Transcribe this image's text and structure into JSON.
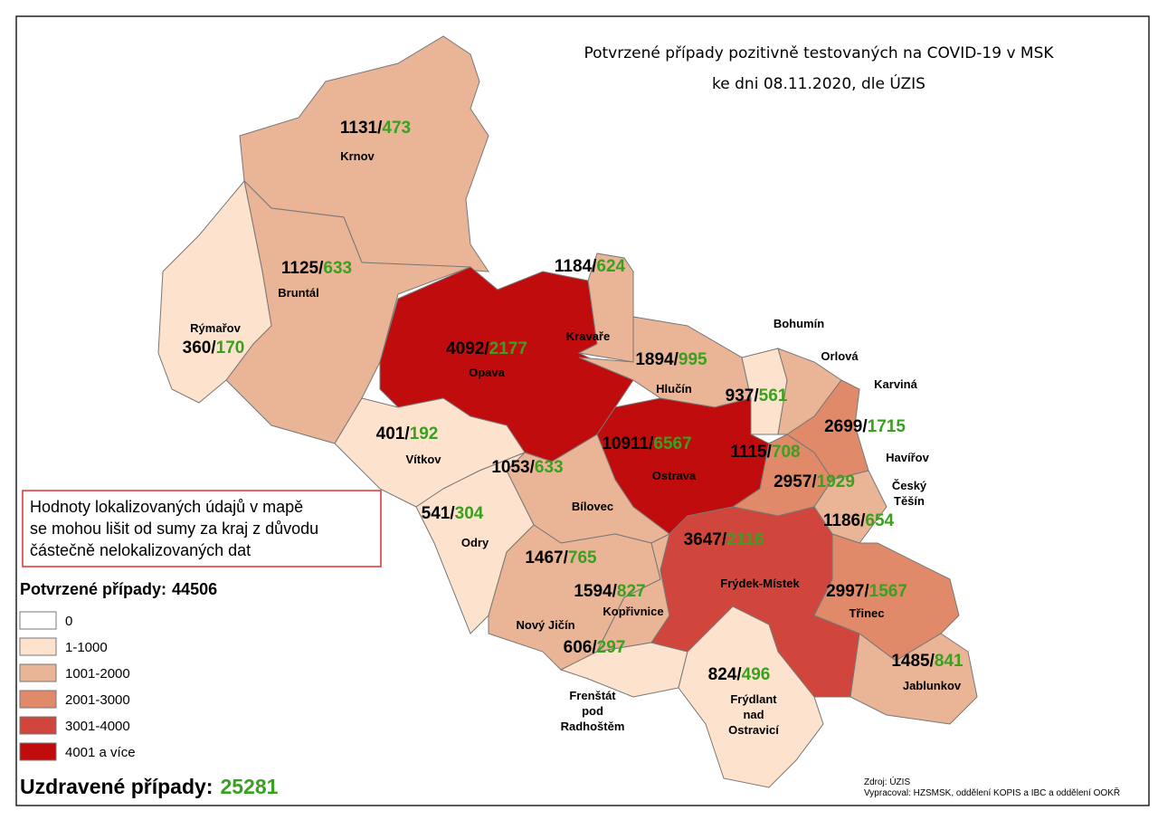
{
  "title": {
    "lines": [
      "Potvrzené případy pozitivně testovaných na COVID-19 v MSK",
      "ke dni 08.11.2020, dle ÚZIS"
    ]
  },
  "separator": "/",
  "regions": [
    {
      "name_lines": [
        "Krnov"
      ],
      "confirmed": 1131,
      "recovered": 473,
      "color": "#e9b596"
    },
    {
      "name_lines": [
        "Bruntál"
      ],
      "confirmed": 1125,
      "recovered": 633,
      "color": "#e9b596"
    },
    {
      "name_lines": [
        "Rýmařov"
      ],
      "confirmed": 360,
      "recovered": 170,
      "color": "#fde3cd"
    },
    {
      "name_lines": [
        "Opava"
      ],
      "confirmed": 4092,
      "recovered": 2177,
      "color": "#c00c0c"
    },
    {
      "name_lines": [
        "Kravaře"
      ],
      "confirmed": 1184,
      "recovered": 624,
      "color": "#e9b596"
    },
    {
      "name_lines": [
        "Hlučín"
      ],
      "confirmed": 1894,
      "recovered": 995,
      "color": "#e9b596"
    },
    {
      "name_lines": [
        "Bohumín"
      ],
      "confirmed": 937,
      "recovered": 561,
      "color": "#fde3cd"
    },
    {
      "name_lines": [
        "Orlová"
      ],
      "confirmed": 1115,
      "recovered": 708,
      "color": "#e9b596"
    },
    {
      "name_lines": [
        "Karviná"
      ],
      "confirmed": 2699,
      "recovered": 1715,
      "color": "#e08a6a"
    },
    {
      "name_lines": [
        "Ostrava"
      ],
      "confirmed": 10911,
      "recovered": 6567,
      "color": "#c00c0c"
    },
    {
      "name_lines": [
        "Havířov"
      ],
      "confirmed": 2957,
      "recovered": 1929,
      "color": "#e08a6a"
    },
    {
      "name_lines": [
        "Český",
        "Těšín"
      ],
      "confirmed": 1186,
      "recovered": 654,
      "color": "#e9b596"
    },
    {
      "name_lines": [
        "Vítkov"
      ],
      "confirmed": 401,
      "recovered": 192,
      "color": "#fde3cd"
    },
    {
      "name_lines": [
        "Bílovec"
      ],
      "confirmed": 1053,
      "recovered": 633,
      "color": "#e9b596"
    },
    {
      "name_lines": [
        "Odry"
      ],
      "confirmed": 541,
      "recovered": 304,
      "color": "#fde3cd"
    },
    {
      "name_lines": [
        "Nový Jičín"
      ],
      "confirmed": 1467,
      "recovered": 765,
      "color": "#e9b596"
    },
    {
      "name_lines": [
        "Kopřivnice"
      ],
      "confirmed": 1594,
      "recovered": 827,
      "color": "#e9b596"
    },
    {
      "name_lines": [
        "Frenštát",
        "pod",
        "Radhoštěm"
      ],
      "confirmed": 606,
      "recovered": 297,
      "color": "#fde3cd"
    },
    {
      "name_lines": [
        "Frýdek-Místek"
      ],
      "confirmed": 3647,
      "recovered": 2116,
      "color": "#d1463c"
    },
    {
      "name_lines": [
        "Třinec"
      ],
      "confirmed": 2997,
      "recovered": 1567,
      "color": "#e08a6a"
    },
    {
      "name_lines": [
        "Frýdlant",
        "nad",
        "Ostravicí"
      ],
      "confirmed": 824,
      "recovered": 496,
      "color": "#fde3cd"
    },
    {
      "name_lines": [
        "Jablunkov"
      ],
      "confirmed": 1485,
      "recovered": 841,
      "color": "#e9b596"
    }
  ],
  "note": {
    "lines": [
      "Hodnoty lokalizovaných údajů v mapě",
      "se mohou lišit od sumy za kraj z důvodu",
      "částečně nelokalizovaných dat"
    ]
  },
  "legend": {
    "title": "Potvrzené případy:",
    "total": 44506,
    "classes": [
      {
        "label": "0",
        "color": "#ffffff"
      },
      {
        "label": "1-1000",
        "color": "#fde3cd"
      },
      {
        "label": "1001-2000",
        "color": "#e9b596"
      },
      {
        "label": "2001-3000",
        "color": "#e08a6a"
      },
      {
        "label": "3001-4000",
        "color": "#d1463c"
      },
      {
        "label": "4001 a více",
        "color": "#c00c0c"
      }
    ]
  },
  "recovered_total": {
    "label": "Uzdravené případy:",
    "value": 25281
  },
  "source": {
    "lines": [
      "Zdroj: ÚZIS",
      "Vypracoval: HZSMSK, oddělení KOPIS a IBC a oddělení OOKŘ"
    ]
  }
}
